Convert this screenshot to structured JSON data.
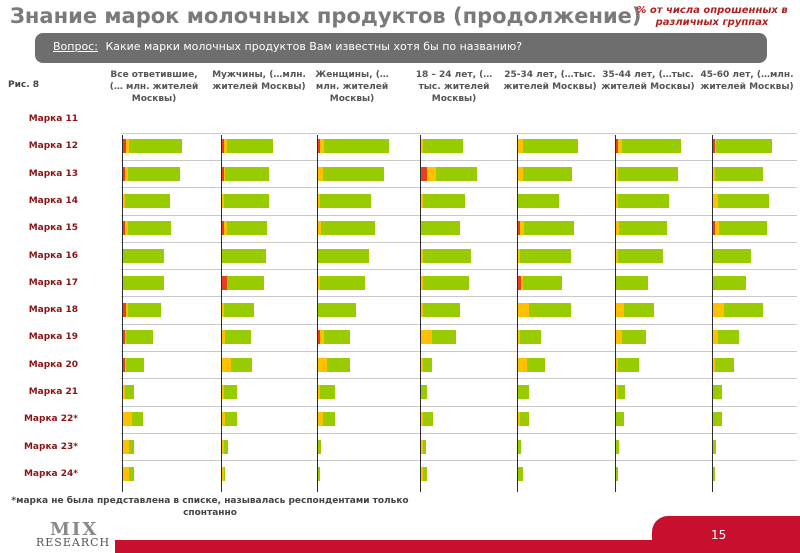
{
  "title": "Знание марок молочных продуктов (продолжение)",
  "note": "% от числа опрошенных в различных группах",
  "question": {
    "label": "Вопрос:",
    "text": "Какие марки молочных продуктов Вам известны хотя бы по названию?"
  },
  "figure_label": "Рис. 8",
  "footnote": "*марка не была представлена в списке, называлась респондентами только спонтанно",
  "logo": {
    "top": "MIX",
    "bottom": "RESEARCH"
  },
  "page_number": "15",
  "colors": {
    "red": "#e8401c",
    "yellow": "#ffc000",
    "green": "#99cc00",
    "accent": "#c8102e"
  },
  "chart_data": {
    "type": "bar",
    "stacked": true,
    "orientation": "horizontal",
    "unit": "%",
    "ylim": [
      0,
      100
    ],
    "columns": [
      "Все ответившие, (… млн. жителей Москвы)",
      "Мужчины, (…млн. жителей Москвы)",
      "Женщины, (…млн. жителей Москвы)",
      "18 – 24 лет, (…тыс. жителей Москвы)",
      "25-34 лет, (…тыс. жителей Москвы)",
      "35-44 лет, (…тыс. жителей Москвы)",
      "45-60 лет, (…млн. жителей Москвы)"
    ],
    "categories": [
      "Марка 11",
      "Марка 12",
      "Марка 13",
      "Марка 14",
      "Марка 15",
      "Марка 16",
      "Марка 17",
      "Марка 18",
      "Марка 19",
      "Марка 20",
      "Марка 21",
      "Марка 22*",
      "Марка 23*",
      "Марка 24*"
    ],
    "series": [
      {
        "name": "segment-red",
        "color": "#e8401c",
        "values": [
          [
            0,
            2,
            1,
            0,
            1,
            0,
            0,
            2,
            1,
            1,
            0,
            0,
            0,
            0
          ],
          [
            0,
            1,
            1,
            0,
            1,
            0,
            3,
            0,
            0,
            0,
            0,
            0,
            0,
            0
          ],
          [
            0,
            1,
            0,
            0,
            0,
            0,
            0,
            0,
            1,
            0,
            0,
            0,
            0,
            0
          ],
          [
            0,
            0,
            4,
            0,
            0,
            0,
            0,
            0,
            0,
            0,
            0,
            0,
            0,
            0
          ],
          [
            0,
            0,
            0,
            0,
            1,
            0,
            2,
            0,
            0,
            0,
            0,
            0,
            0,
            0
          ],
          [
            0,
            1,
            0,
            0,
            0,
            0,
            0,
            0,
            0,
            0,
            0,
            0,
            0,
            0
          ],
          [
            0,
            1,
            0,
            0,
            1,
            0,
            0,
            0,
            0,
            0,
            0,
            0,
            0,
            0
          ]
        ]
      },
      {
        "name": "segment-yellow",
        "color": "#ffc000",
        "values": [
          [
            0,
            2,
            2,
            1,
            2,
            0,
            0,
            1,
            1,
            1,
            1,
            6,
            4,
            4
          ],
          [
            0,
            2,
            1,
            1,
            2,
            0,
            0,
            1,
            2,
            6,
            1,
            2,
            1,
            1
          ],
          [
            0,
            3,
            3,
            1,
            2,
            0,
            1,
            0,
            3,
            6,
            1,
            3,
            0,
            0
          ],
          [
            0,
            1,
            6,
            1,
            0,
            1,
            1,
            1,
            7,
            1,
            0,
            1,
            1,
            1
          ],
          [
            0,
            3,
            3,
            0,
            3,
            1,
            1,
            7,
            1,
            6,
            0,
            1,
            0,
            0
          ],
          [
            0,
            3,
            1,
            1,
            2,
            1,
            0,
            5,
            4,
            1,
            1,
            0,
            0,
            0
          ],
          [
            0,
            1,
            1,
            3,
            3,
            0,
            0,
            7,
            3,
            1,
            0,
            0,
            0,
            0
          ]
        ]
      },
      {
        "name": "segment-green",
        "color": "#99cc00",
        "values": [
          [
            0,
            35,
            35,
            30,
            29,
            27,
            27,
            22,
            18,
            12,
            6,
            7,
            3,
            3
          ],
          [
            0,
            31,
            29,
            30,
            27,
            29,
            25,
            20,
            17,
            14,
            9,
            8,
            3,
            1
          ],
          [
            0,
            43,
            41,
            34,
            36,
            34,
            30,
            25,
            17,
            15,
            10,
            8,
            2,
            1
          ],
          [
            0,
            27,
            27,
            28,
            26,
            32,
            31,
            25,
            16,
            6,
            4,
            7,
            2,
            3
          ],
          [
            0,
            37,
            33,
            27,
            33,
            34,
            26,
            28,
            14,
            12,
            7,
            6,
            2,
            3
          ],
          [
            0,
            39,
            40,
            34,
            32,
            30,
            21,
            20,
            16,
            14,
            5,
            5,
            2,
            1
          ],
          [
            0,
            37,
            32,
            34,
            32,
            25,
            22,
            26,
            14,
            13,
            6,
            6,
            2,
            1
          ]
        ]
      }
    ]
  }
}
